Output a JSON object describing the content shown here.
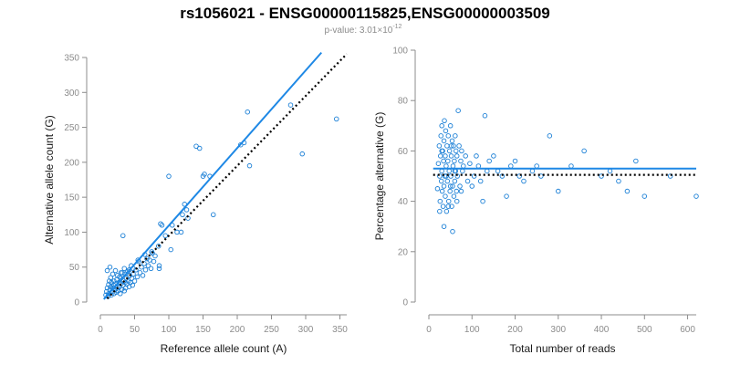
{
  "title": "rs1056021 - ENSG00000115825,ENSG00000003509",
  "subtitle": {
    "prefix": "p-value: 3.01",
    "times": "×",
    "base": "10",
    "exponent": "-12"
  },
  "colors": {
    "points": "#1a7fd6",
    "fit": "#1e88e5",
    "reference": "#000000"
  },
  "chart_data": [
    {
      "type": "scatter",
      "xlabel": "Reference allele count (A)",
      "ylabel": "Alternative allele count (G)",
      "xlim": [
        0,
        360
      ],
      "ylim": [
        0,
        350
      ],
      "xticks": [
        0,
        50,
        100,
        150,
        200,
        250,
        300,
        350
      ],
      "yticks": [
        0,
        50,
        100,
        150,
        200,
        250,
        300,
        350
      ],
      "grid": false,
      "fit_line": [
        [
          5,
          4
        ],
        [
          323,
          357
        ]
      ],
      "reference_line": {
        "style": "dotted",
        "points": [
          [
            10,
            5
          ],
          [
            360,
            355
          ]
        ]
      },
      "points": [
        [
          8,
          10
        ],
        [
          9,
          15
        ],
        [
          10,
          20
        ],
        [
          11,
          8
        ],
        [
          12,
          25
        ],
        [
          12,
          12
        ],
        [
          13,
          30
        ],
        [
          14,
          18
        ],
        [
          15,
          22
        ],
        [
          15,
          35
        ],
        [
          16,
          10
        ],
        [
          16,
          28
        ],
        [
          17,
          15
        ],
        [
          18,
          40
        ],
        [
          18,
          20
        ],
        [
          19,
          24
        ],
        [
          20,
          12
        ],
        [
          20,
          30
        ],
        [
          21,
          18
        ],
        [
          22,
          45
        ],
        [
          22,
          26
        ],
        [
          23,
          14
        ],
        [
          24,
          32
        ],
        [
          25,
          20
        ],
        [
          25,
          38
        ],
        [
          26,
          16
        ],
        [
          27,
          28
        ],
        [
          28,
          22
        ],
        [
          28,
          36
        ],
        [
          29,
          12
        ],
        [
          30,
          26
        ],
        [
          30,
          34
        ],
        [
          31,
          18
        ],
        [
          32,
          42
        ],
        [
          33,
          24
        ],
        [
          34,
          30
        ],
        [
          35,
          16
        ],
        [
          35,
          48
        ],
        [
          36,
          28
        ],
        [
          37,
          20
        ],
        [
          38,
          34
        ],
        [
          39,
          26
        ],
        [
          40,
          44
        ],
        [
          41,
          30
        ],
        [
          42,
          22
        ],
        [
          43,
          38
        ],
        [
          44,
          28
        ],
        [
          45,
          52
        ],
        [
          46,
          34
        ],
        [
          47,
          24
        ],
        [
          48,
          40
        ],
        [
          50,
          30
        ],
        [
          52,
          46
        ],
        [
          54,
          36
        ],
        [
          56,
          58
        ],
        [
          58,
          42
        ],
        [
          60,
          50
        ],
        [
          62,
          38
        ],
        [
          64,
          55
        ],
        [
          66,
          46
        ],
        [
          68,
          62
        ],
        [
          70,
          52
        ],
        [
          72,
          60
        ],
        [
          74,
          48
        ],
        [
          76,
          70
        ],
        [
          78,
          58
        ],
        [
          80,
          66
        ],
        [
          33,
          95
        ],
        [
          10,
          45
        ],
        [
          14,
          50
        ],
        [
          86,
          52
        ],
        [
          86,
          48
        ],
        [
          88,
          112
        ],
        [
          90,
          110
        ],
        [
          100,
          180
        ],
        [
          103,
          75
        ],
        [
          118,
          100
        ],
        [
          120,
          125
        ],
        [
          123,
          140
        ],
        [
          126,
          132
        ],
        [
          128,
          120
        ],
        [
          140,
          223
        ],
        [
          145,
          220
        ],
        [
          150,
          180
        ],
        [
          152,
          183
        ],
        [
          165,
          125
        ],
        [
          205,
          225
        ],
        [
          210,
          228
        ],
        [
          215,
          272
        ],
        [
          218,
          195
        ],
        [
          278,
          282
        ],
        [
          295,
          212
        ],
        [
          345,
          262
        ],
        [
          160,
          180
        ],
        [
          112,
          100
        ],
        [
          95,
          95
        ],
        [
          105,
          110
        ],
        [
          85,
          80
        ],
        [
          75,
          72
        ],
        [
          65,
          68
        ],
        [
          55,
          60
        ],
        [
          48,
          48
        ],
        [
          42,
          46
        ],
        [
          36,
          40
        ],
        [
          30,
          42
        ]
      ]
    },
    {
      "type": "scatter",
      "xlabel": "Total number of reads",
      "ylabel": "Percentage alternative (G)",
      "xlim": [
        0,
        620
      ],
      "ylim": [
        0,
        100
      ],
      "xticks": [
        0,
        100,
        200,
        300,
        400,
        500,
        600
      ],
      "yticks": [
        0,
        20,
        40,
        60,
        80,
        100
      ],
      "grid": false,
      "fit_line": [
        [
          10,
          53
        ],
        [
          620,
          53
        ]
      ],
      "reference_line": {
        "style": "dotted",
        "points": [
          [
            10,
            50.5
          ],
          [
            620,
            50.5
          ]
        ]
      },
      "points": [
        [
          20,
          45
        ],
        [
          22,
          55
        ],
        [
          24,
          62
        ],
        [
          25,
          50
        ],
        [
          26,
          40
        ],
        [
          27,
          58
        ],
        [
          28,
          66
        ],
        [
          29,
          48
        ],
        [
          30,
          52
        ],
        [
          30,
          70
        ],
        [
          31,
          44
        ],
        [
          32,
          60
        ],
        [
          33,
          38
        ],
        [
          34,
          56
        ],
        [
          35,
          64
        ],
        [
          35,
          46
        ],
        [
          36,
          72
        ],
        [
          37,
          50
        ],
        [
          38,
          42
        ],
        [
          38,
          58
        ],
        [
          39,
          68
        ],
        [
          40,
          54
        ],
        [
          41,
          36
        ],
        [
          42,
          62
        ],
        [
          43,
          48
        ],
        [
          44,
          56
        ],
        [
          45,
          66
        ],
        [
          46,
          40
        ],
        [
          47,
          52
        ],
        [
          48,
          60
        ],
        [
          49,
          44
        ],
        [
          50,
          70
        ],
        [
          51,
          50
        ],
        [
          52,
          58
        ],
        [
          53,
          38
        ],
        [
          54,
          64
        ],
        [
          55,
          46
        ],
        [
          56,
          54
        ],
        [
          57,
          62
        ],
        [
          58,
          42
        ],
        [
          59,
          56
        ],
        [
          60,
          48
        ],
        [
          61,
          66
        ],
        [
          62,
          52
        ],
        [
          63,
          60
        ],
        [
          64,
          44
        ],
        [
          65,
          58
        ],
        [
          66,
          50
        ],
        [
          68,
          76
        ],
        [
          70,
          62
        ],
        [
          72,
          46
        ],
        [
          74,
          56
        ],
        [
          76,
          60
        ],
        [
          78,
          52
        ],
        [
          80,
          54
        ],
        [
          85,
          58
        ],
        [
          90,
          48
        ],
        [
          95,
          55
        ],
        [
          100,
          46
        ],
        [
          105,
          50
        ],
        [
          110,
          58
        ],
        [
          115,
          54
        ],
        [
          120,
          48
        ],
        [
          125,
          40
        ],
        [
          130,
          74
        ],
        [
          135,
          52
        ],
        [
          140,
          56
        ],
        [
          150,
          58
        ],
        [
          160,
          52
        ],
        [
          170,
          50
        ],
        [
          180,
          42
        ],
        [
          190,
          54
        ],
        [
          200,
          56
        ],
        [
          210,
          50
        ],
        [
          220,
          48
        ],
        [
          240,
          52
        ],
        [
          250,
          54
        ],
        [
          260,
          50
        ],
        [
          280,
          66
        ],
        [
          300,
          44
        ],
        [
          330,
          54
        ],
        [
          360,
          60
        ],
        [
          400,
          50
        ],
        [
          420,
          52
        ],
        [
          440,
          48
        ],
        [
          460,
          44
        ],
        [
          480,
          56
        ],
        [
          500,
          42
        ],
        [
          560,
          50
        ],
        [
          620,
          42
        ],
        [
          55,
          28
        ],
        [
          25,
          36
        ],
        [
          45,
          38
        ],
        [
          35,
          30
        ],
        [
          65,
          40
        ],
        [
          75,
          44
        ],
        [
          52,
          62
        ],
        [
          30,
          60
        ],
        [
          40,
          50
        ],
        [
          50,
          46
        ],
        [
          60,
          52
        ]
      ]
    }
  ]
}
